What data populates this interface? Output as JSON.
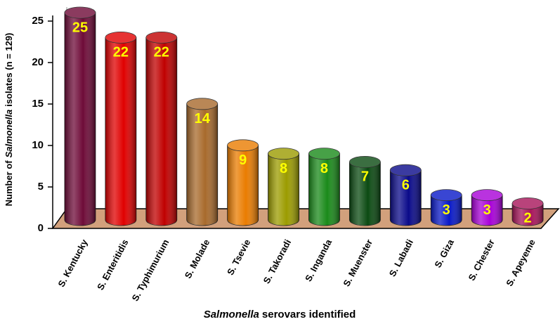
{
  "chart_data": {
    "type": "cylinder",
    "y_label": [
      "Number of",
      "Salmonella",
      "isolates (n = 129)"
    ],
    "x_label": [
      "Salmonella",
      "serovars identified"
    ],
    "categories": [
      "S. Kentucky",
      "S. Enteritidis",
      "S. Typhimurium",
      "S. Molade",
      "S. Tsevie",
      "S. Takoradi",
      "S. Inganda",
      "S. Muenster",
      "S. Labadi",
      "S. Giza",
      "S. Chester",
      "S. Apeyeme"
    ],
    "values": [
      25,
      22,
      22,
      14,
      9,
      8,
      8,
      7,
      6,
      3,
      3,
      2
    ],
    "colors": [
      "#6e0b38",
      "#e00000",
      "#c00000",
      "#a86a2c",
      "#ea7c00",
      "#9c9c00",
      "#1a8a1a",
      "#0b4a12",
      "#0a0a8a",
      "#0818c8",
      "#a800d8",
      "#a8145a"
    ],
    "ylim": [
      0,
      25
    ],
    "yticks": [
      0,
      5,
      10,
      15,
      20,
      25
    ]
  }
}
